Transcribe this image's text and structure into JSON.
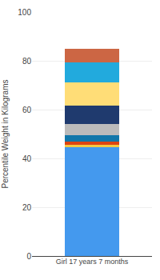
{
  "chart_data": {
    "type": "bar",
    "stacked": true,
    "categories": [
      "Girl 17 years 7 months"
    ],
    "series": [
      {
        "values": [
          44.5
        ],
        "color": "#4499EE"
      },
      {
        "values": [
          1.0
        ],
        "color": "#F5C842"
      },
      {
        "values": [
          1.5
        ],
        "color": "#DD4411"
      },
      {
        "values": [
          2.5
        ],
        "color": "#1177AA"
      },
      {
        "values": [
          4.5
        ],
        "color": "#BBBBBB"
      },
      {
        "values": [
          7.5
        ],
        "color": "#1F3A6E"
      },
      {
        "values": [
          9.5
        ],
        "color": "#FFDD77"
      },
      {
        "values": [
          8.5
        ],
        "color": "#22AADD"
      },
      {
        "values": [
          5.5
        ],
        "color": "#CC6644"
      }
    ],
    "ylabel": "Percentile Weight in Kilograms",
    "ylim": [
      0,
      100
    ],
    "yticks": [
      0,
      20,
      40,
      60,
      80,
      100
    ],
    "grid": true
  }
}
